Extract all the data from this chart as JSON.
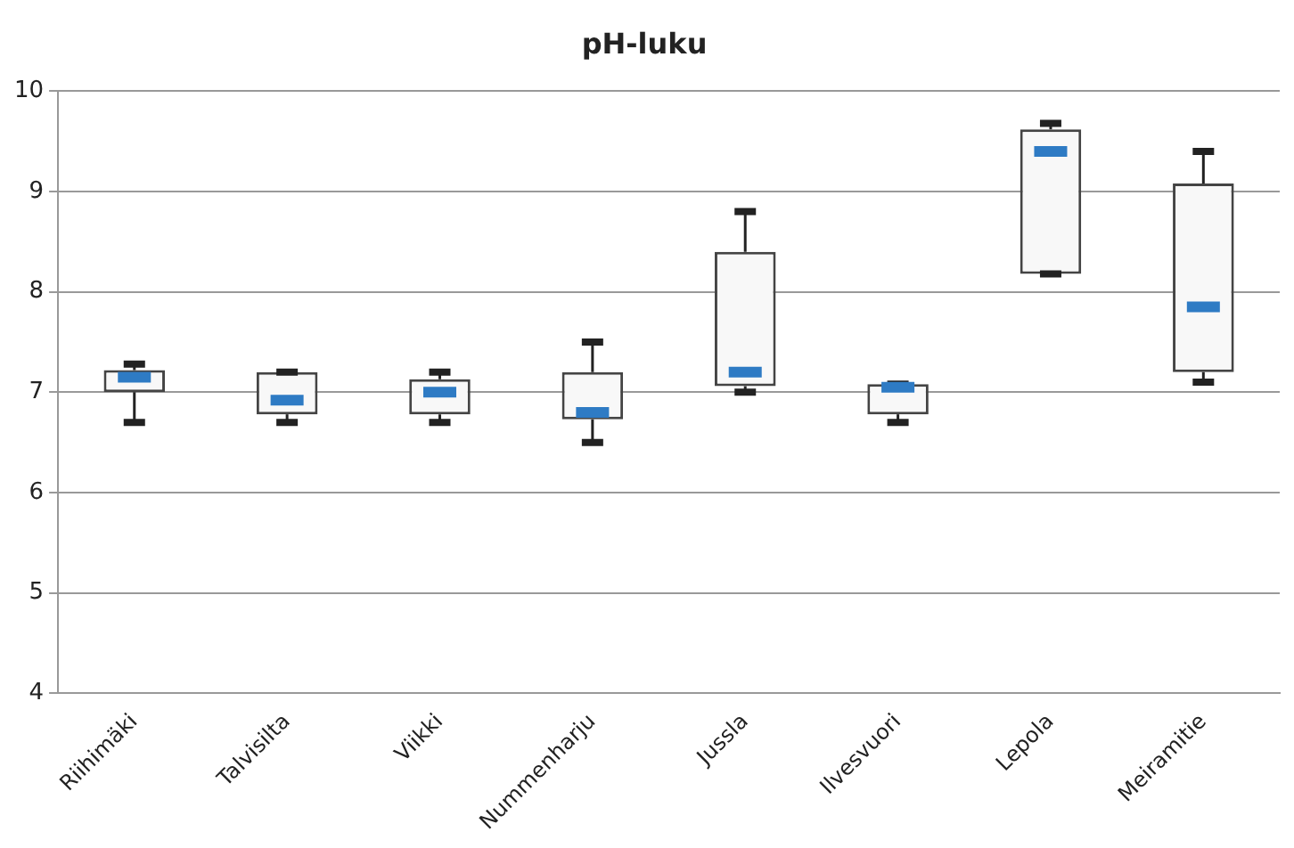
{
  "chart_data": {
    "type": "box",
    "title": "pH-luku",
    "categories": [
      "Riihimäki",
      "Talvisilta",
      "Viikki",
      "Nummenharju",
      "Jussla",
      "Ilvesvuori",
      "Lepola",
      "Meiramitie"
    ],
    "boxes": [
      {
        "low": 6.7,
        "q1": 7.0,
        "median": 7.15,
        "q3": 7.22,
        "high": 7.28
      },
      {
        "low": 6.7,
        "q1": 6.78,
        "median": 6.92,
        "q3": 7.2,
        "high": 7.2
      },
      {
        "low": 6.7,
        "q1": 6.78,
        "median": 7.0,
        "q3": 7.13,
        "high": 7.2
      },
      {
        "low": 6.5,
        "q1": 6.73,
        "median": 6.8,
        "q3": 7.2,
        "high": 7.5
      },
      {
        "low": 7.0,
        "q1": 7.06,
        "median": 7.2,
        "q3": 8.4,
        "high": 8.8
      },
      {
        "low": 6.7,
        "q1": 6.78,
        "median": 7.05,
        "q3": 7.08,
        "high": 7.08
      },
      {
        "low": 8.18,
        "q1": 8.18,
        "median": 9.4,
        "q3": 9.62,
        "high": 9.68
      },
      {
        "low": 7.1,
        "q1": 7.2,
        "median": 7.85,
        "q3": 9.08,
        "high": 9.4
      }
    ],
    "color": "#f8f8f8",
    "ylim": [
      4,
      10
    ],
    "yticks": [
      4,
      5,
      6,
      7,
      8,
      9,
      10
    ],
    "grid": "y",
    "legend": false
  }
}
